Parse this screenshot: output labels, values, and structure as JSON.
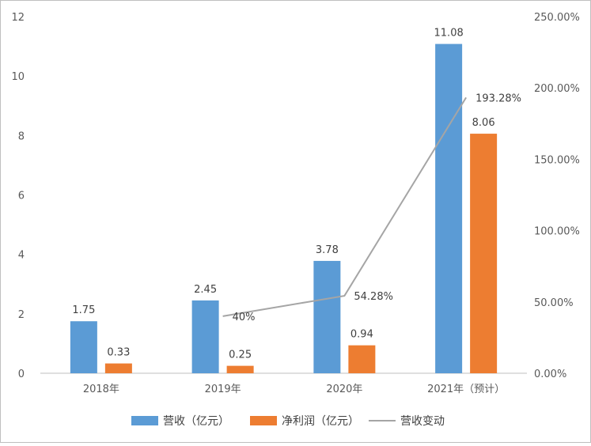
{
  "chart_data": {
    "type": "bar",
    "categories": [
      "2018年",
      "2019年",
      "2020年",
      "2021年（预计）"
    ],
    "series": [
      {
        "name": "营收（亿元）",
        "type": "bar",
        "axis": "left",
        "color": "#5b9bd5",
        "values": [
          1.75,
          2.45,
          3.78,
          11.08
        ],
        "labels": [
          "1.75",
          "2.45",
          "3.78",
          "11.08"
        ]
      },
      {
        "name": "净利润（亿元）",
        "type": "bar",
        "axis": "left",
        "color": "#ed7d31",
        "values": [
          0.33,
          0.25,
          0.94,
          8.06
        ],
        "labels": [
          "0.33",
          "0.25",
          "0.94",
          "8.06"
        ]
      },
      {
        "name": "营收变动",
        "type": "line",
        "axis": "right",
        "color": "#a5a5a5",
        "values": [
          null,
          40,
          54.28,
          193.28
        ],
        "labels": [
          "",
          "40%",
          "54.28%",
          "193.28%"
        ]
      }
    ],
    "y_left": {
      "min": 0,
      "max": 12,
      "ticks": [
        "0",
        "2",
        "4",
        "6",
        "8",
        "10",
        "12"
      ]
    },
    "y_right": {
      "min": 0,
      "max": 250,
      "ticks": [
        "0.00%",
        "50.00%",
        "100.00%",
        "150.00%",
        "200.00%",
        "250.00%"
      ]
    },
    "grid": false,
    "legend_position": "bottom"
  }
}
